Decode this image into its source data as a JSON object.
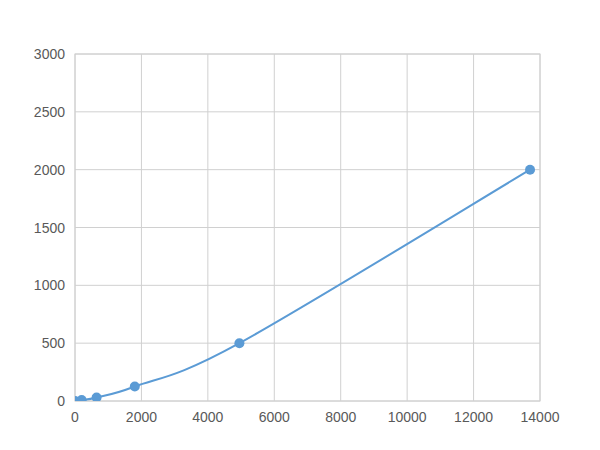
{
  "chart_data": {
    "type": "line",
    "x": [
      0,
      200,
      650,
      1800,
      4950,
      13700
    ],
    "values": [
      0,
      8,
      31,
      125,
      500,
      2000
    ],
    "color": "#5b9bd5",
    "marker": "circle",
    "line_style": "smooth",
    "xlim": [
      0,
      14000
    ],
    "xticks": [
      0,
      2000,
      4000,
      6000,
      8000,
      10000,
      12000,
      14000
    ],
    "ylim": [
      0,
      3000
    ],
    "yticks": [
      0,
      500,
      1000,
      1500,
      2000,
      2500,
      3000
    ],
    "grid": true
  }
}
